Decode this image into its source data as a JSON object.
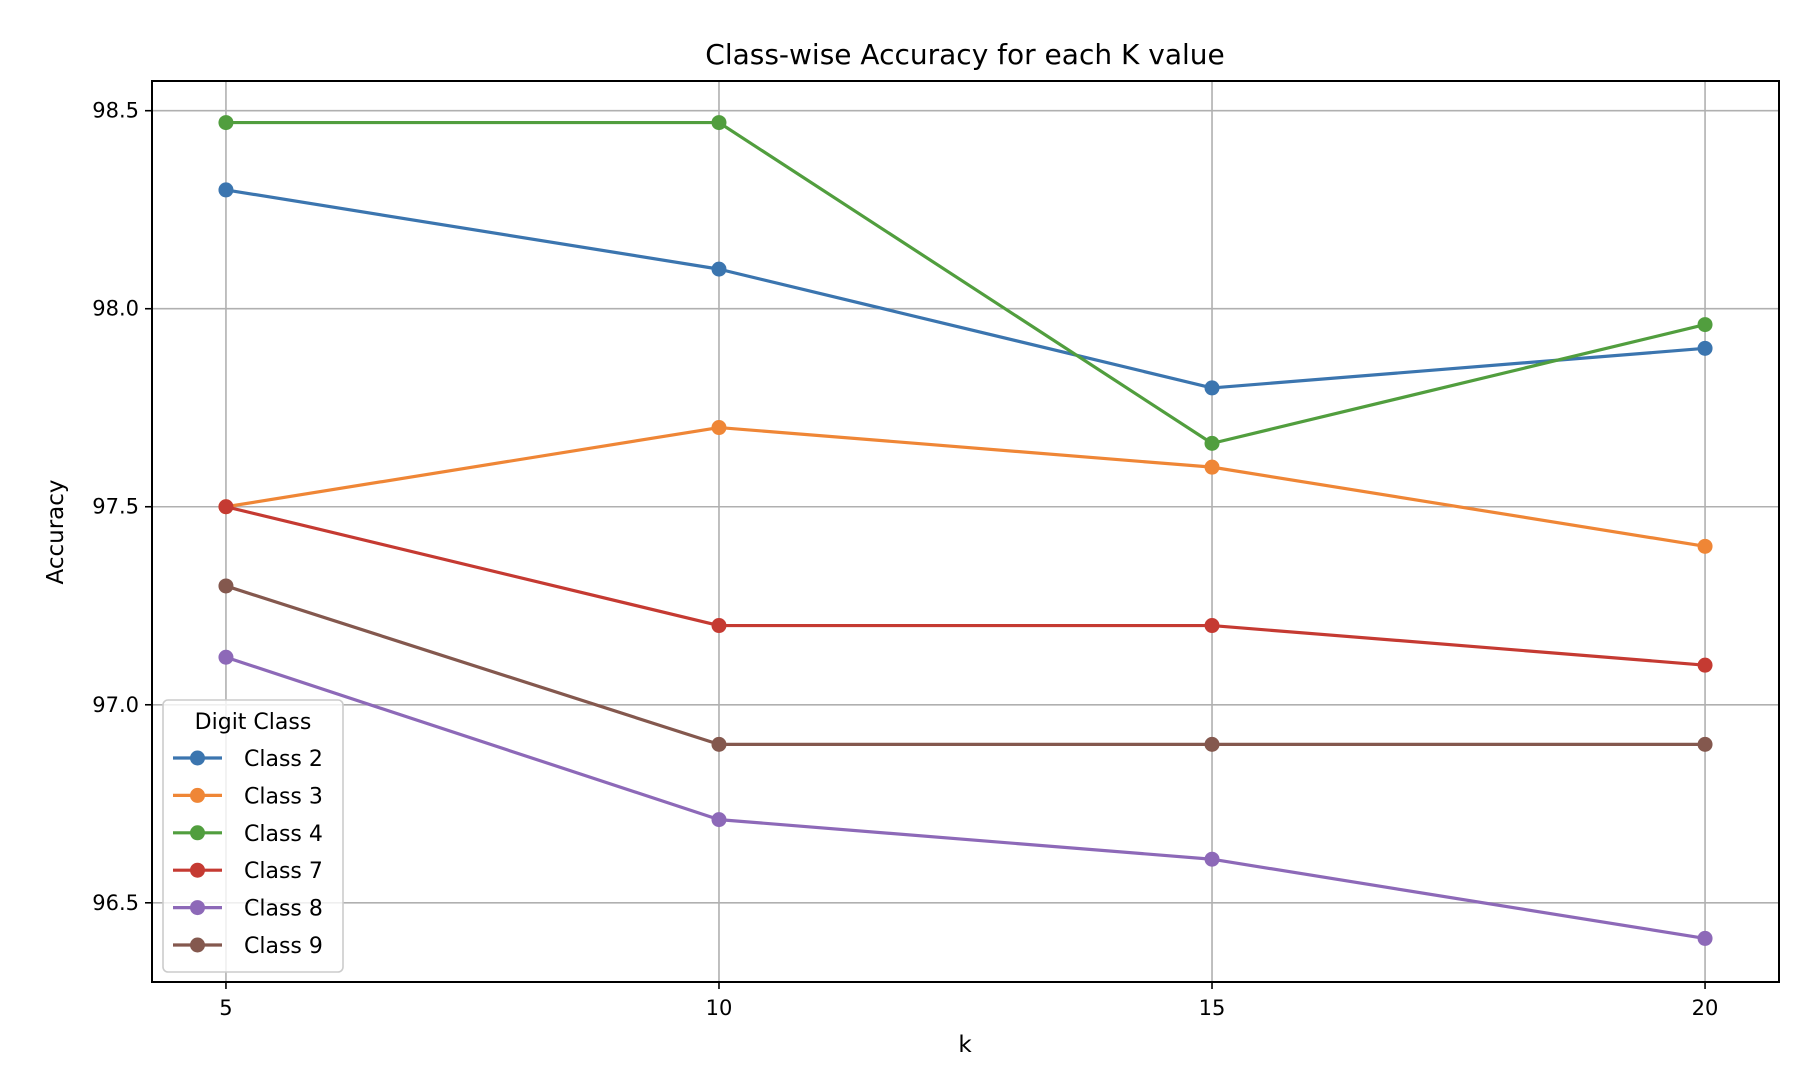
{
  "chart_data": {
    "type": "line",
    "title": "Class-wise Accuracy for each K value",
    "xlabel": "k",
    "ylabel": "Accuracy",
    "x": [
      5,
      10,
      15,
      20
    ],
    "xticks": [
      "5",
      "10",
      "15",
      "20"
    ],
    "xlim": [
      4.25,
      20.75
    ],
    "yticks": [
      "96.5",
      "97.0",
      "97.5",
      "98.0",
      "98.5"
    ],
    "ytick_values": [
      96.5,
      97.0,
      97.5,
      98.0,
      98.5
    ],
    "ylim": [
      96.3,
      98.575
    ],
    "grid": true,
    "marker": "circle",
    "legend": {
      "title": "Digit Class",
      "placement": "lower-left"
    },
    "series": [
      {
        "name": "Class 2",
        "color": "#3b75af",
        "values": [
          98.3,
          98.1,
          97.8,
          97.9
        ]
      },
      {
        "name": "Class 3",
        "color": "#ef8636",
        "values": [
          97.5,
          97.7,
          97.6,
          97.4
        ]
      },
      {
        "name": "Class 4",
        "color": "#519e3e",
        "values": [
          98.47,
          98.47,
          97.66,
          97.96
        ]
      },
      {
        "name": "Class 7",
        "color": "#c53a32",
        "values": [
          97.5,
          97.2,
          97.2,
          97.1
        ]
      },
      {
        "name": "Class 8",
        "color": "#8d69b8",
        "values": [
          97.12,
          96.71,
          96.61,
          96.41
        ]
      },
      {
        "name": "Class 9",
        "color": "#84584e",
        "values": [
          97.3,
          96.9,
          96.9,
          96.9
        ]
      }
    ]
  }
}
